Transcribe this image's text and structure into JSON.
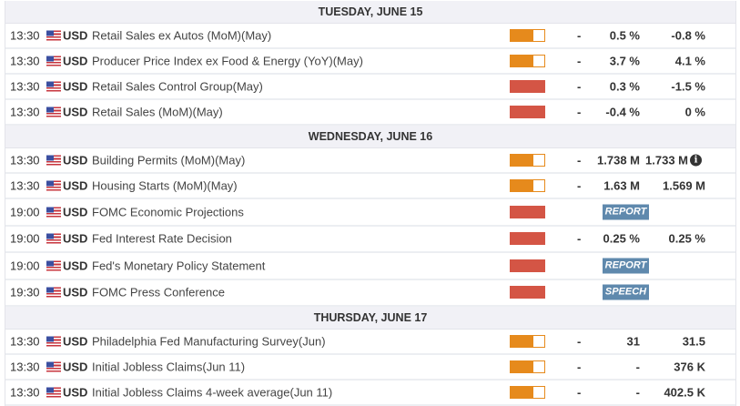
{
  "colors": {
    "medium": "#e68a1c",
    "high": "#d45545",
    "badge": "#5f89ad"
  },
  "days": [
    {
      "label": "TUESDAY, JUNE 15",
      "events": [
        {
          "time": "13:30",
          "currency": "USD",
          "name": "Retail Sales ex Autos (MoM)(May)",
          "impact": "medium",
          "impact_level": 0.67,
          "previous_dash": "-",
          "actual": "0.5 %",
          "forecast": "-0.8 %"
        },
        {
          "time": "13:30",
          "currency": "USD",
          "name": "Producer Price Index ex Food & Energy (YoY)(May)",
          "impact": "medium",
          "impact_level": 0.67,
          "previous_dash": "-",
          "actual": "3.7 %",
          "forecast": "4.1 %"
        },
        {
          "time": "13:30",
          "currency": "USD",
          "name": "Retail Sales Control Group(May)",
          "impact": "high",
          "impact_level": 1,
          "previous_dash": "-",
          "actual": "0.3 %",
          "forecast": "-1.5 %"
        },
        {
          "time": "13:30",
          "currency": "USD",
          "name": "Retail Sales (MoM)(May)",
          "impact": "high",
          "impact_level": 1,
          "previous_dash": "-",
          "actual": "-0.4 %",
          "forecast": "0 %"
        }
      ]
    },
    {
      "label": "WEDNESDAY, JUNE 16",
      "events": [
        {
          "time": "13:30",
          "currency": "USD",
          "name": "Building Permits (MoM)(May)",
          "impact": "medium",
          "impact_level": 0.67,
          "previous_dash": "-",
          "actual": "1.738 M",
          "forecast": "1.733 M",
          "info": "i"
        },
        {
          "time": "13:30",
          "currency": "USD",
          "name": "Housing Starts (MoM)(May)",
          "impact": "medium",
          "impact_level": 0.67,
          "previous_dash": "-",
          "actual": "1.63 M",
          "forecast": "1.569 M"
        },
        {
          "time": "19:00",
          "currency": "USD",
          "name": "FOMC Economic Projections",
          "impact": "high",
          "impact_level": 1,
          "badge": "REPORT"
        },
        {
          "time": "19:00",
          "currency": "USD",
          "name": "Fed Interest Rate Decision",
          "impact": "high",
          "impact_level": 1,
          "previous_dash": "-",
          "actual": "0.25 %",
          "forecast": "0.25 %"
        },
        {
          "time": "19:00",
          "currency": "USD",
          "name": "Fed's Monetary Policy Statement",
          "impact": "high",
          "impact_level": 1,
          "badge": "REPORT"
        },
        {
          "time": "19:30",
          "currency": "USD",
          "name": "FOMC Press Conference",
          "impact": "high",
          "impact_level": 1,
          "badge": "SPEECH"
        }
      ]
    },
    {
      "label": "THURSDAY, JUNE 17",
      "events": [
        {
          "time": "13:30",
          "currency": "USD",
          "name": "Philadelphia Fed Manufacturing Survey(Jun)",
          "impact": "medium",
          "impact_level": 0.67,
          "previous_dash": "-",
          "actual": "31",
          "forecast": "31.5"
        },
        {
          "time": "13:30",
          "currency": "USD",
          "name": "Initial Jobless Claims(Jun 11)",
          "impact": "medium",
          "impact_level": 0.67,
          "previous_dash": "-",
          "actual": "-",
          "forecast": "376 K"
        },
        {
          "time": "13:30",
          "currency": "USD",
          "name": "Initial Jobless Claims 4-week average(Jun 11)",
          "impact": "medium",
          "impact_level": 0.67,
          "previous_dash": "-",
          "actual": "-",
          "forecast": "402.5 K"
        }
      ]
    }
  ]
}
